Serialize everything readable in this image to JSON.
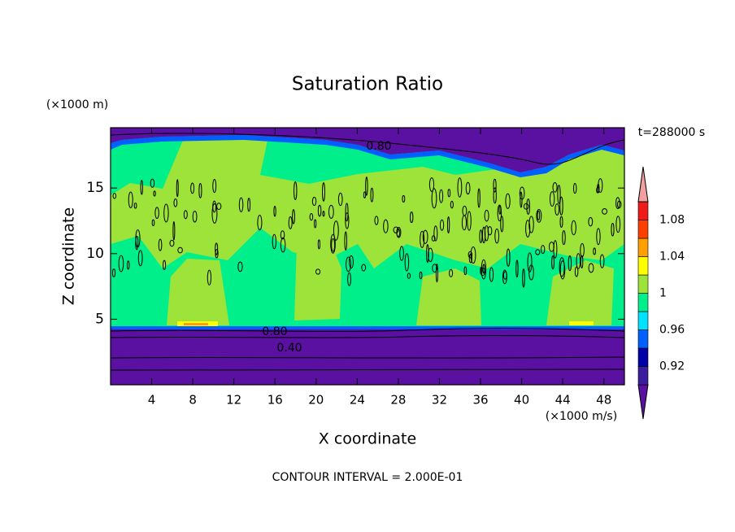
{
  "chart_data": {
    "type": "contour",
    "title": "Saturation Ratio",
    "x_label": "X coordinate",
    "y_label": "Z coordinate",
    "x_unit": "(×1000 m/s)",
    "y_unit": "(×1000 m)",
    "time_label": "t=288000 s",
    "footer": "CONTOUR INTERVAL = 2.000E-01",
    "xlim": [
      0,
      50
    ],
    "ylim": [
      0,
      19.6
    ],
    "xticks": [
      4,
      8,
      12,
      16,
      20,
      24,
      28,
      32,
      36,
      40,
      44,
      48
    ],
    "yticks": [
      5,
      10,
      15
    ],
    "contour_lines": [
      {
        "value": 0.8,
        "label": "0.80"
      },
      {
        "value": 0.4,
        "label": "0.40"
      }
    ],
    "colorbar": {
      "levels": [
        0.9,
        0.92,
        0.94,
        0.96,
        0.98,
        1,
        1.02,
        1.04,
        1.06,
        1.08,
        1.1
      ],
      "colors": [
        "#5a10a0",
        "#3a1e9e",
        "#0000a8",
        "#0060ff",
        "#00e0ff",
        "#00ef8a",
        "#9de33a",
        "#ffff00",
        "#ff9f00",
        "#ff4000",
        "#ef1a1a",
        "#f0a0a0"
      ],
      "ticks": [
        0.92,
        0.96,
        1,
        1.04,
        1.08
      ]
    }
  }
}
